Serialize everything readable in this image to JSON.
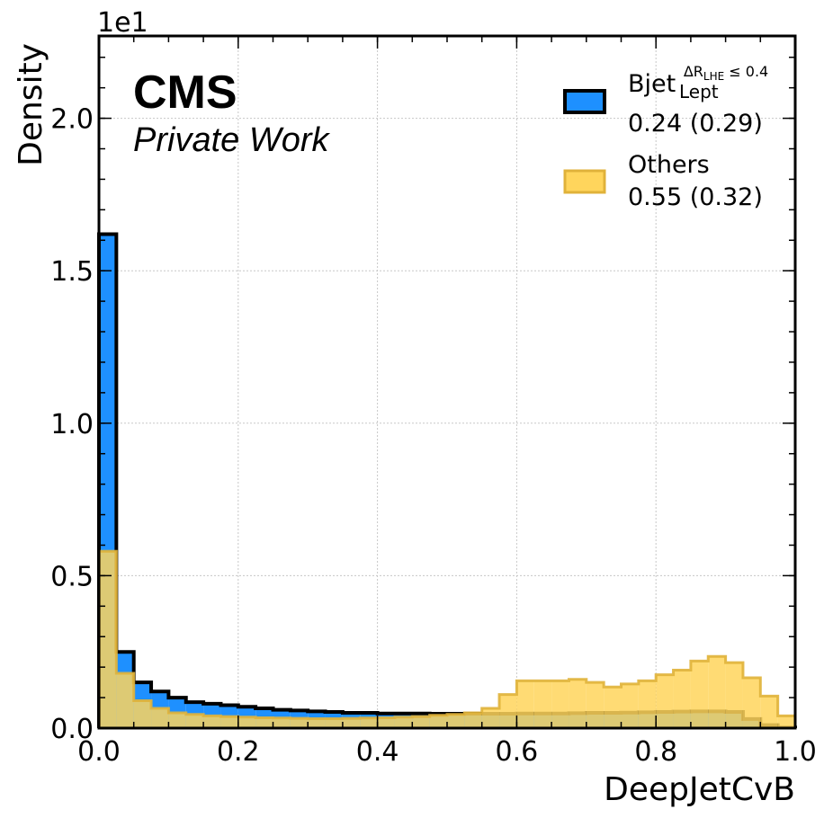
{
  "chart_data": {
    "type": "histogram",
    "xlabel": "DeepJetCvB",
    "ylabel": "Density",
    "scale_factor_label": "1e1",
    "xlim": [
      0.0,
      1.0
    ],
    "ylim": [
      0.0,
      2.27
    ],
    "xticks": [
      0.0,
      0.2,
      0.4,
      0.6,
      0.8,
      1.0
    ],
    "xtick_labels": [
      "0.0",
      "0.2",
      "0.4",
      "0.6",
      "0.8",
      "1.0"
    ],
    "yticks": [
      0.0,
      0.5,
      1.0,
      1.5,
      2.0
    ],
    "ytick_labels": [
      "0.0",
      "0.5",
      "1.0",
      "1.5",
      "2.0"
    ],
    "grid": true,
    "legend_position": "top-right",
    "bin_edges": [
      0.0,
      0.025,
      0.05,
      0.075,
      0.1,
      0.125,
      0.15,
      0.175,
      0.2,
      0.225,
      0.25,
      0.275,
      0.3,
      0.325,
      0.35,
      0.375,
      0.4,
      0.425,
      0.45,
      0.475,
      0.5,
      0.525,
      0.55,
      0.575,
      0.6,
      0.625,
      0.65,
      0.675,
      0.7,
      0.725,
      0.75,
      0.775,
      0.8,
      0.825,
      0.85,
      0.875,
      0.9,
      0.925,
      0.95,
      0.975,
      1.0
    ],
    "series": [
      {
        "name": "Bjet",
        "legend_main": "Bjet",
        "legend_sup": "ΔR",
        "legend_sup_sub": "LHE",
        "legend_sup_tail": " ≤ 0.4",
        "legend_sub": "Lept",
        "legend_stats": "0.24 (0.29)",
        "fill_color": "#1e90ff",
        "edge_color": "#000000",
        "values": [
          1.62,
          0.25,
          0.15,
          0.12,
          0.1,
          0.085,
          0.08,
          0.075,
          0.07,
          0.065,
          0.06,
          0.058,
          0.055,
          0.053,
          0.05,
          0.05,
          0.048,
          0.048,
          0.048,
          0.047,
          0.047,
          0.047,
          0.047,
          0.047,
          0.048,
          0.048,
          0.048,
          0.049,
          0.05,
          0.05,
          0.051,
          0.052,
          0.053,
          0.054,
          0.055,
          0.055,
          0.053,
          0.03,
          0.01,
          0.002
        ]
      },
      {
        "name": "Others",
        "legend_main": "Others",
        "legend_stats": "0.55 (0.32)",
        "fill_color": "#ffd55c",
        "edge_color": "#e0b23a",
        "values": [
          0.58,
          0.18,
          0.09,
          0.065,
          0.05,
          0.045,
          0.04,
          0.038,
          0.036,
          0.034,
          0.033,
          0.032,
          0.031,
          0.031,
          0.032,
          0.033,
          0.034,
          0.036,
          0.038,
          0.042,
          0.045,
          0.05,
          0.065,
          0.11,
          0.155,
          0.155,
          0.155,
          0.16,
          0.15,
          0.135,
          0.145,
          0.155,
          0.175,
          0.19,
          0.22,
          0.235,
          0.215,
          0.165,
          0.105,
          0.04
        ]
      }
    ]
  },
  "branding": {
    "experiment": "CMS",
    "subtitle": "Private Work"
  }
}
